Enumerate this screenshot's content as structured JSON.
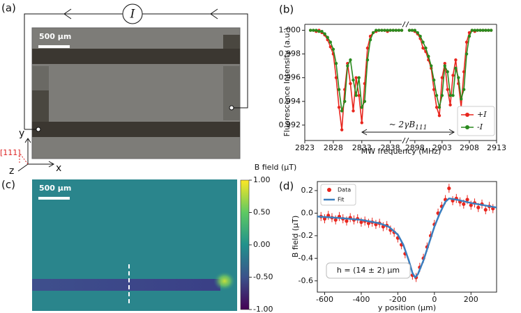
{
  "chart_data": [
    {
      "type": "image",
      "label": "(a)",
      "scale_bar": "500 μm",
      "source_label": "I",
      "axes_labels": {
        "x": "x",
        "y": "y",
        "z": "z",
        "direction": "[111]"
      }
    },
    {
      "type": "line",
      "label": "(b)",
      "xlabel": "MW frequency (MHz)",
      "ylabel": "Fluorescence Intensity (a.u.)",
      "x": [
        2824,
        2824.5,
        2825,
        2825.5,
        2826,
        2826.5,
        2827,
        2827.5,
        2828,
        2828.5,
        2829,
        2829.5,
        2830,
        2830.5,
        2831,
        2831.5,
        2832,
        2832.5,
        2833,
        2833.5,
        2834,
        2834.5,
        2835,
        2835.5,
        2836,
        2836.5,
        2837,
        2837.5,
        2838,
        2838.5,
        2839,
        2839.5,
        2840,
        2897,
        2897.5,
        2898,
        2898.5,
        2899,
        2899.5,
        2900,
        2900.5,
        2901,
        2901.5,
        2902,
        2902.5,
        2903,
        2903.5,
        2904,
        2904.5,
        2905,
        2905.5,
        2906,
        2906.5,
        2907,
        2907.5,
        2908,
        2908.5,
        2909,
        2909.5,
        2910,
        2910.5,
        2911,
        2911.5,
        2912
      ],
      "xlim": [
        2823,
        2913
      ],
      "x_break": [
        2840,
        2897
      ],
      "xticks": [
        2823,
        2828,
        2833,
        2838,
        2898,
        2903,
        2908,
        2913
      ],
      "ylim": [
        0.9907,
        1.0005
      ],
      "yticks": [
        0.992,
        0.994,
        0.996,
        0.998,
        {
          "value": 1,
          "label": "1.000"
        }
      ],
      "series": [
        {
          "name": "+I",
          "color": "#e8261e",
          "values": [
            1,
            1,
            0.9999,
            1,
            0.9998,
            0.9996,
            0.9992,
            0.9986,
            0.998,
            0.996,
            0.9935,
            0.9916,
            0.995,
            0.9972,
            0.9955,
            0.9932,
            0.996,
            0.9945,
            0.9922,
            0.9955,
            0.9985,
            0.9995,
            0.9998,
            0.9999,
            1,
            1,
            1,
            0.9999,
            1,
            1,
            1,
            1,
            1,
            1,
            1,
            0.9999,
            0.9997,
            0.9993,
            0.9985,
            0.9982,
            0.9975,
            0.9968,
            0.995,
            0.9935,
            0.9928,
            0.996,
            0.9972,
            0.995,
            0.9937,
            0.9962,
            0.9975,
            0.9955,
            0.9935,
            0.9965,
            0.999,
            0.9998,
            1,
            0.9999,
            1,
            1,
            1,
            1,
            1,
            1
          ]
        },
        {
          "name": "-I",
          "color": "#2a8a1e",
          "values": [
            1,
            1,
            1,
            0.9999,
            0.9999,
            0.9997,
            0.9994,
            0.999,
            0.9984,
            0.9972,
            0.995,
            0.9932,
            0.994,
            0.997,
            0.9975,
            0.9958,
            0.9945,
            0.996,
            0.9935,
            0.994,
            0.9975,
            0.9992,
            0.9998,
            1,
            1,
            1,
            1,
            1,
            1,
            1,
            1,
            1,
            1,
            1,
            1,
            1,
            0.9998,
            0.9995,
            0.999,
            0.9985,
            0.9978,
            0.997,
            0.9958,
            0.9945,
            0.9935,
            0.9945,
            0.997,
            0.9965,
            0.9945,
            0.9945,
            0.9968,
            0.996,
            0.9942,
            0.995,
            0.998,
            0.9995,
            1,
            1,
            1,
            1,
            1,
            1,
            1,
            1
          ]
        }
      ],
      "annotation": {
        "text": "~ 2γB",
        "subscript": "111"
      },
      "legend": "lower right"
    },
    {
      "type": "heatmap",
      "label": "(c)",
      "scale_bar": "500 μm",
      "colorbar_label": "B field (μT)",
      "clim": [
        -1,
        1
      ],
      "cticks": [
        {
          "value": 1,
          "label": "1.00"
        },
        {
          "value": 0.5,
          "label": "0.50"
        },
        {
          "value": 0,
          "label": "0.00"
        },
        {
          "value": -0.5,
          "label": "-0.50"
        },
        {
          "value": -1,
          "label": "-1.00"
        }
      ]
    },
    {
      "type": "scatter",
      "label": "(d)",
      "xlabel": "y position (μm)",
      "ylabel": "B field (μT)",
      "xlim": [
        -640,
        340
      ],
      "xticks": [
        -600,
        -400,
        -200,
        0,
        200
      ],
      "ylim": [
        -0.7,
        0.28
      ],
      "yticks": [
        -0.6,
        -0.4,
        -0.2,
        {
          "value": 0,
          "label": "0.0"
        },
        0.2
      ],
      "series": [
        {
          "name": "Data",
          "color": "#e8261e",
          "x": [
            -620,
            -600,
            -580,
            -560,
            -540,
            -520,
            -500,
            -480,
            -460,
            -440,
            -420,
            -400,
            -380,
            -360,
            -340,
            -320,
            -300,
            -280,
            -260,
            -240,
            -220,
            -200,
            -180,
            -160,
            -140,
            -120,
            -100,
            -80,
            -60,
            -40,
            -20,
            0,
            20,
            40,
            60,
            80,
            100,
            120,
            140,
            160,
            180,
            200,
            220,
            240,
            260,
            280,
            300,
            320
          ],
          "values": [
            -0.03,
            -0.05,
            -0.02,
            -0.04,
            -0.06,
            -0.03,
            -0.05,
            -0.07,
            -0.04,
            -0.06,
            -0.05,
            -0.08,
            -0.07,
            -0.09,
            -0.08,
            -0.1,
            -0.09,
            -0.12,
            -0.11,
            -0.15,
            -0.17,
            -0.22,
            -0.28,
            -0.36,
            -0.47,
            -0.55,
            -0.57,
            -0.48,
            -0.4,
            -0.3,
            -0.2,
            -0.1,
            0,
            0.06,
            0.12,
            0.22,
            0.11,
            0.13,
            0.1,
            0.08,
            0.12,
            0.07,
            0.09,
            0.05,
            0.08,
            0.03,
            0.06,
            0.04
          ],
          "errors": [
            0.04,
            0.04,
            0.04,
            0.04,
            0.04,
            0.04,
            0.04,
            0.04,
            0.04,
            0.04,
            0.04,
            0.04,
            0.04,
            0.04,
            0.04,
            0.04,
            0.04,
            0.04,
            0.04,
            0.04,
            0.04,
            0.04,
            0.04,
            0.04,
            0.04,
            0.04,
            0.04,
            0.04,
            0.04,
            0.04,
            0.04,
            0.04,
            0.04,
            0.04,
            0.04,
            0.04,
            0.04,
            0.04,
            0.04,
            0.04,
            0.04,
            0.04,
            0.04,
            0.04,
            0.04,
            0.04,
            0.04,
            0.04
          ]
        },
        {
          "name": "Fit",
          "color": "#3a7ebf",
          "x": [
            -640,
            -500,
            -400,
            -300,
            -250,
            -200,
            -170,
            -140,
            -120,
            -105,
            -90,
            -60,
            -30,
            0,
            30,
            60,
            80,
            120,
            200,
            340
          ],
          "values": [
            -0.03,
            -0.045,
            -0.06,
            -0.09,
            -0.12,
            -0.19,
            -0.28,
            -0.42,
            -0.53,
            -0.57,
            -0.54,
            -0.42,
            -0.27,
            -0.12,
            0,
            0.1,
            0.13,
            0.12,
            0.09,
            0.05
          ]
        }
      ],
      "annotation": "h = (14 ± 2) μm",
      "legend": "upper left"
    }
  ]
}
